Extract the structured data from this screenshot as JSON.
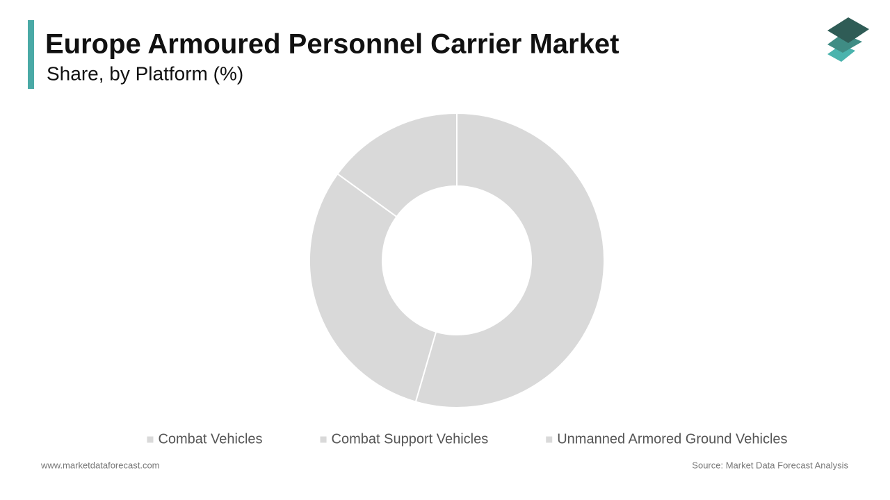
{
  "chart_data": {
    "type": "pie",
    "title": "Europe Armoured Personnel Carrier Market",
    "subtitle": "Share, by Platform (%)",
    "categories": [
      "Combat Vehicles",
      "Combat Support Vehicles",
      "Unmanned Armored Ground Vehicles"
    ],
    "values": [
      54.5,
      30.5,
      15
    ],
    "colors": [
      "#d9d9d9",
      "#d9d9d9",
      "#d9d9d9"
    ],
    "legend": "bottom"
  },
  "footer": {
    "website": "www.marketdataforecast.com",
    "source": "Source: Market Data Forecast Analysis"
  }
}
